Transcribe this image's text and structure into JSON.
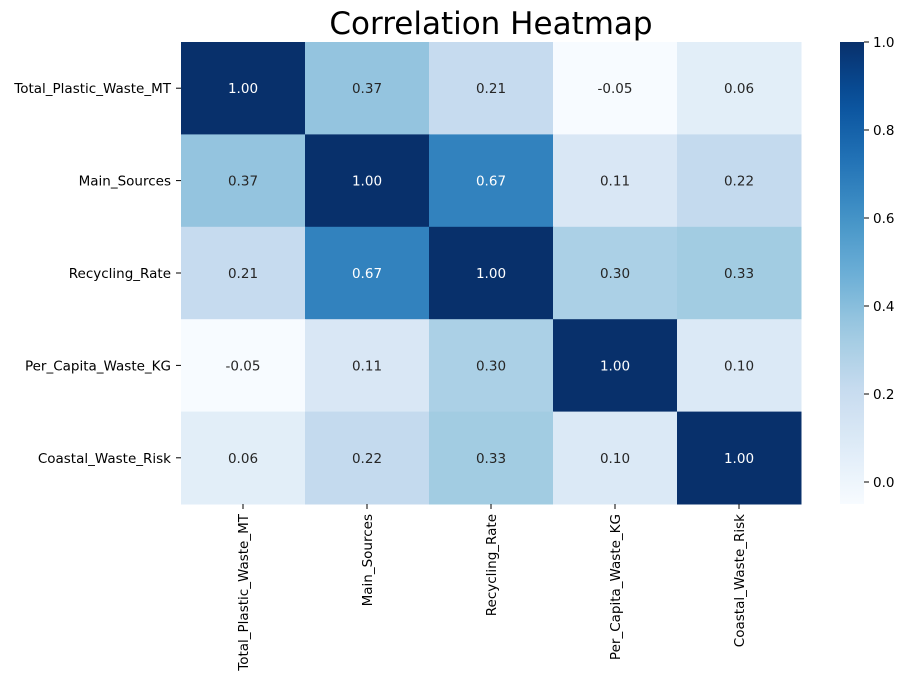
{
  "chart_data": {
    "type": "heatmap",
    "title": "Correlation Heatmap",
    "xlabel": "",
    "ylabel": "",
    "x_categories": [
      "Total_Plastic_Waste_MT",
      "Main_Sources",
      "Recycling_Rate",
      "Per_Capita_Waste_KG",
      "Coastal_Waste_Risk"
    ],
    "y_categories": [
      "Total_Plastic_Waste_MT",
      "Main_Sources",
      "Recycling_Rate",
      "Per_Capita_Waste_KG",
      "Coastal_Waste_Risk"
    ],
    "values": [
      [
        1.0,
        0.37,
        0.21,
        -0.05,
        0.06
      ],
      [
        0.37,
        1.0,
        0.67,
        0.11,
        0.22
      ],
      [
        0.21,
        0.67,
        1.0,
        0.3,
        0.33
      ],
      [
        -0.05,
        0.11,
        0.3,
        1.0,
        0.1
      ],
      [
        0.06,
        0.22,
        0.33,
        0.1,
        1.0
      ]
    ],
    "annotation_format": "0.00",
    "colormap": "Blues",
    "colorbar": {
      "range": [
        -0.05,
        1.0
      ],
      "ticks": [
        0.0,
        0.2,
        0.4,
        0.6,
        0.8,
        1.0
      ],
      "tick_labels": [
        "0.0",
        "0.2",
        "0.4",
        "0.6",
        "0.8",
        "1.0"
      ]
    },
    "colors": {
      "low": "#f7fbff",
      "high": "#08306b",
      "text_light": "#ffffff",
      "text_dark": "#262626"
    }
  }
}
